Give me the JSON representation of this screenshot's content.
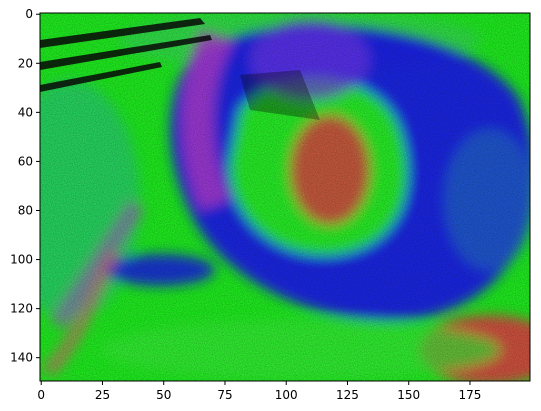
{
  "chart_data": {
    "type": "heatmap",
    "title": "",
    "xlabel": "",
    "ylabel": "",
    "image_shape": [
      150,
      200
    ],
    "xlim": [
      0,
      199
    ],
    "ylim": [
      149,
      0
    ],
    "x_ticks": [
      0,
      25,
      50,
      75,
      100,
      125,
      150,
      175
    ],
    "y_ticks": [
      0,
      20,
      40,
      60,
      80,
      100,
      120,
      140
    ],
    "colors": {
      "green": "#22ff22",
      "blue": "#1a1aff",
      "magenta": "#c040e0",
      "purple": "#7a3cff",
      "red": "#ff3a4a",
      "cyan": "#30d0a0",
      "black": "#0a0a0a"
    },
    "regions": [
      {
        "name": "background",
        "color": "green",
        "x": [
          0,
          199
        ],
        "y": [
          0,
          149
        ]
      },
      {
        "name": "dark-streaks-top-left",
        "color": "black",
        "x": [
          0,
          65
        ],
        "y": [
          0,
          30
        ]
      },
      {
        "name": "blue-ring",
        "color": "blue",
        "x": [
          52,
          199
        ],
        "y": [
          0,
          125
        ]
      },
      {
        "name": "magenta-arc-left",
        "color": "magenta",
        "x": [
          52,
          80
        ],
        "y": [
          5,
          80
        ]
      },
      {
        "name": "inner-red",
        "color": "red",
        "x": [
          115,
          140
        ],
        "y": [
          40,
          90
        ]
      },
      {
        "name": "red-bottom-right",
        "color": "red",
        "x": [
          160,
          199
        ],
        "y": [
          120,
          149
        ]
      },
      {
        "name": "blue-lower-left",
        "color": "blue",
        "x": [
          30,
          75
        ],
        "y": [
          98,
          118
        ]
      }
    ]
  }
}
